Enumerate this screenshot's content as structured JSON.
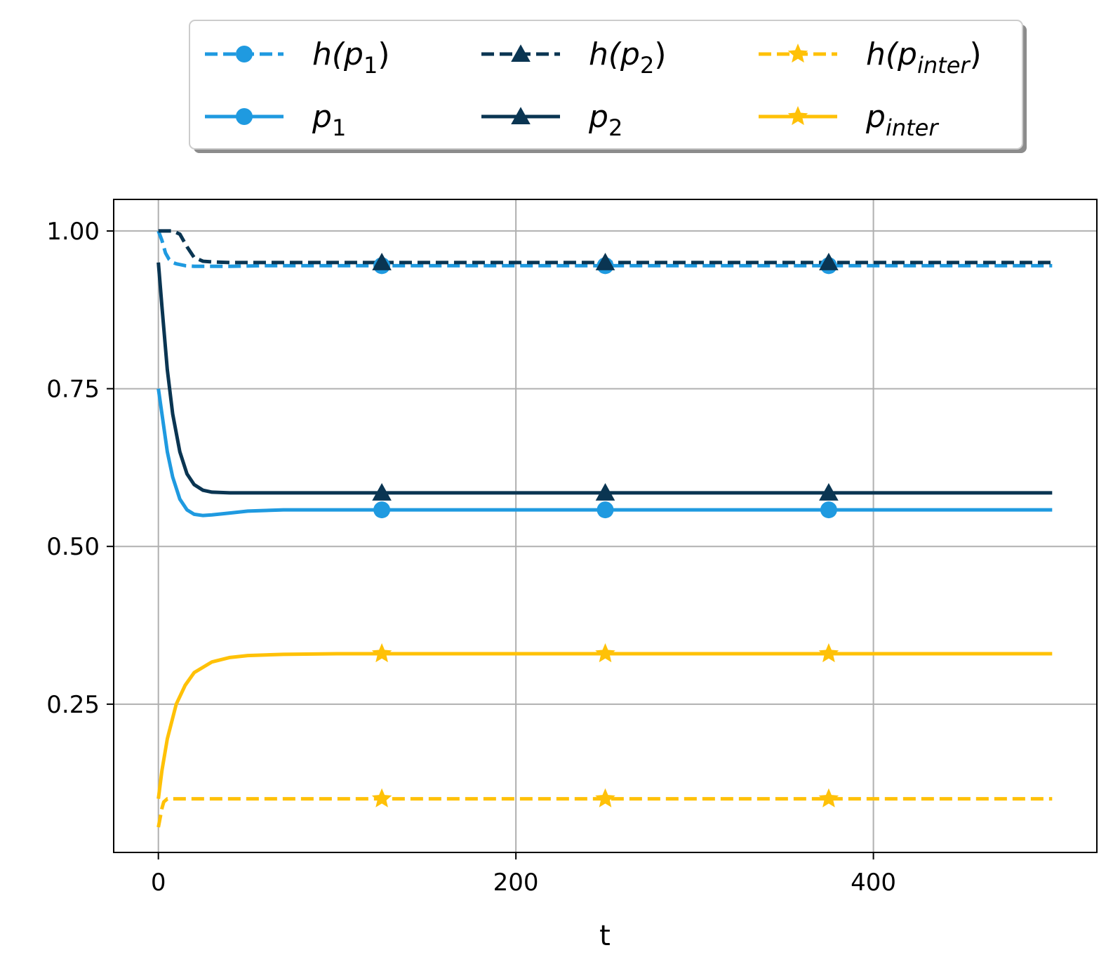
{
  "chart_data": {
    "type": "line",
    "title": "",
    "xlabel": "t",
    "ylabel": "",
    "xlim": [
      -25,
      525
    ],
    "ylim": [
      0.015,
      1.05
    ],
    "xticks": [
      0,
      200,
      400
    ],
    "yticks": [
      0.25,
      0.5,
      0.75,
      1.0
    ],
    "xtick_labels": [
      "0",
      "200",
      "400"
    ],
    "ytick_labels": [
      "0.25",
      "0.50",
      "0.75",
      "1.00"
    ],
    "grid": true,
    "legend_position": "top-center, above plot, 3 columns",
    "marker_x": [
      125,
      250,
      375
    ],
    "series": [
      {
        "name": "h(p1)",
        "label_main": "h(p",
        "label_sub": "1",
        "label_end": ")",
        "style": "dashed",
        "marker": "circle",
        "color": "#1f9ae0",
        "x": [
          0,
          2,
          4,
          6,
          8,
          10,
          15,
          20,
          30,
          40,
          60,
          100,
          150,
          200,
          300,
          400,
          500
        ],
        "y": [
          1.0,
          0.985,
          0.965,
          0.955,
          0.95,
          0.948,
          0.945,
          0.944,
          0.944,
          0.944,
          0.945,
          0.945,
          0.945,
          0.945,
          0.945,
          0.945,
          0.945
        ]
      },
      {
        "name": "h(p2)",
        "label_main": "h(p",
        "label_sub": "2",
        "label_end": ")",
        "style": "dashed",
        "marker": "triangle",
        "color": "#0a3552",
        "x": [
          0,
          4,
          8,
          12,
          16,
          20,
          25,
          30,
          40,
          60,
          100,
          200,
          300,
          400,
          500
        ],
        "y": [
          1.0,
          1.0,
          1.0,
          0.995,
          0.975,
          0.958,
          0.952,
          0.951,
          0.95,
          0.95,
          0.95,
          0.95,
          0.95,
          0.95,
          0.95
        ]
      },
      {
        "name": "h(pinter)",
        "label_main": "h(p",
        "label_sub": "inter",
        "label_end": ")",
        "style": "dashed",
        "marker": "star",
        "color": "#ffc107",
        "x": [
          0,
          1,
          2,
          3,
          5,
          10,
          50,
          100,
          200,
          300,
          400,
          500
        ],
        "y": [
          0.055,
          0.07,
          0.085,
          0.095,
          0.1,
          0.1,
          0.1,
          0.1,
          0.1,
          0.1,
          0.1,
          0.1
        ]
      },
      {
        "name": "p1",
        "label_main": "p",
        "label_sub": "1",
        "label_end": "",
        "style": "solid",
        "marker": "circle",
        "color": "#1f9ae0",
        "x": [
          0,
          2,
          5,
          8,
          12,
          16,
          20,
          25,
          30,
          40,
          50,
          70,
          100,
          150,
          200,
          300,
          400,
          500
        ],
        "y": [
          0.75,
          0.71,
          0.65,
          0.61,
          0.575,
          0.558,
          0.551,
          0.549,
          0.55,
          0.553,
          0.556,
          0.558,
          0.558,
          0.558,
          0.558,
          0.558,
          0.558,
          0.558
        ]
      },
      {
        "name": "p2",
        "label_main": "p",
        "label_sub": "2",
        "label_end": "",
        "style": "solid",
        "marker": "triangle",
        "color": "#0a3552",
        "x": [
          0,
          2,
          5,
          8,
          12,
          16,
          20,
          25,
          30,
          40,
          50,
          70,
          100,
          150,
          200,
          300,
          400,
          500
        ],
        "y": [
          0.95,
          0.88,
          0.78,
          0.71,
          0.65,
          0.615,
          0.598,
          0.589,
          0.586,
          0.585,
          0.585,
          0.585,
          0.585,
          0.585,
          0.585,
          0.585,
          0.585,
          0.585
        ]
      },
      {
        "name": "pinter",
        "label_main": "p",
        "label_sub": "inter",
        "label_end": "",
        "style": "solid",
        "marker": "star",
        "color": "#ffc107",
        "x": [
          0,
          2,
          5,
          10,
          15,
          20,
          30,
          40,
          50,
          70,
          100,
          150,
          200,
          300,
          400,
          500
        ],
        "y": [
          0.1,
          0.145,
          0.195,
          0.25,
          0.28,
          0.3,
          0.317,
          0.324,
          0.327,
          0.329,
          0.33,
          0.33,
          0.33,
          0.33,
          0.33,
          0.33
        ]
      }
    ]
  }
}
